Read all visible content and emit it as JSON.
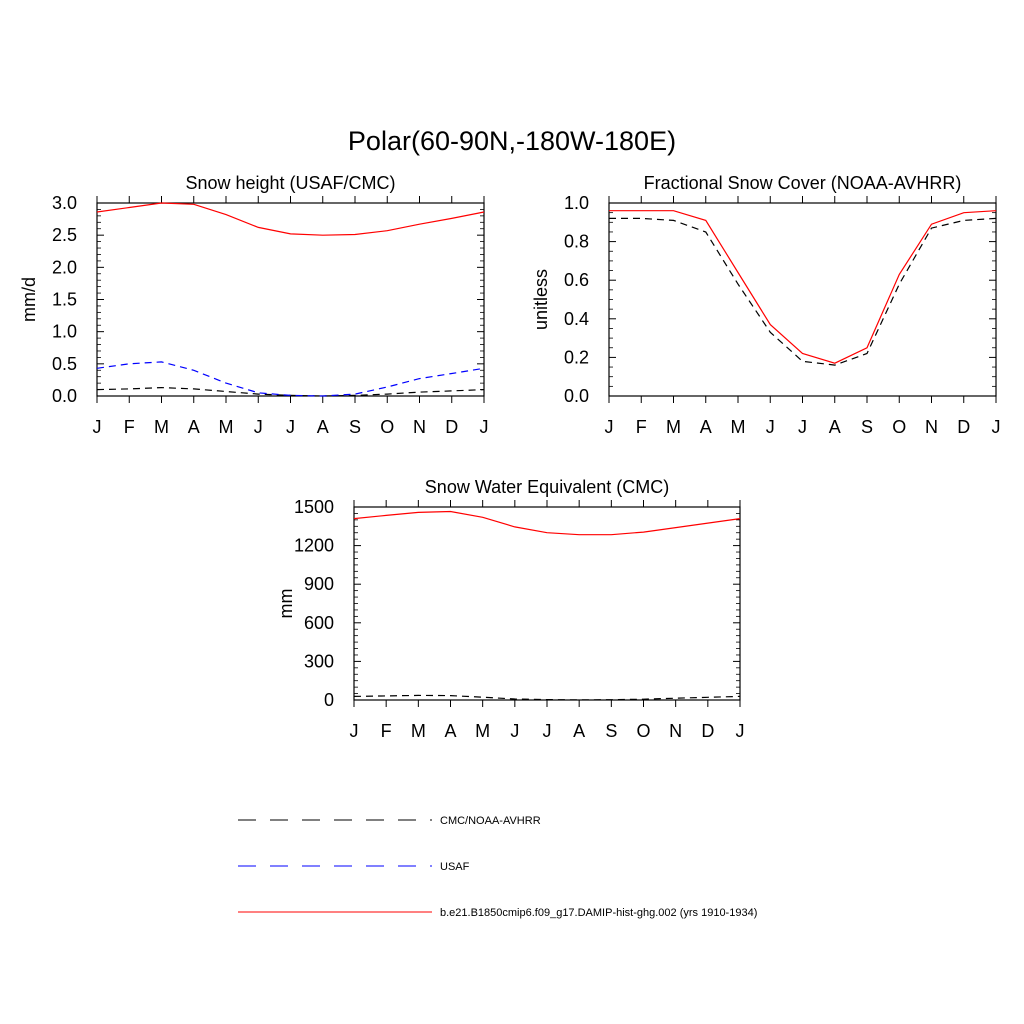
{
  "figure": {
    "title": "Polar(60-90N,-180W-180E)"
  },
  "legend": [
    {
      "label": "CMC/NOAA-AVHRR",
      "color": "#000000",
      "style": "dashed"
    },
    {
      "label": "USAF",
      "color": "#0000ff",
      "style": "dashed"
    },
    {
      "label": "b.e21.B1850cmip6.f09_g17.DAMIP-hist-ghg.002 (yrs 1910-1934)",
      "color": "#ff0000",
      "style": "solid"
    }
  ],
  "chart_data": [
    {
      "type": "line",
      "title": "Snow height (USAF/CMC)",
      "ylabel": "mm/d",
      "xlabel": "",
      "categories": [
        "J",
        "F",
        "M",
        "A",
        "M",
        "J",
        "J",
        "A",
        "S",
        "O",
        "N",
        "D",
        "J"
      ],
      "ylim": [
        0,
        3.0
      ],
      "yticks": [
        "0.0",
        "0.5",
        "1.0",
        "1.5",
        "2.0",
        "2.5",
        "3.0"
      ],
      "series": [
        {
          "name": "CMC/NOAA-AVHRR",
          "color": "#000000",
          "style": "dashed",
          "values": [
            0.1,
            0.11,
            0.13,
            0.11,
            0.07,
            0.03,
            0.01,
            0.0,
            0.01,
            0.03,
            0.06,
            0.08,
            0.1
          ]
        },
        {
          "name": "USAF",
          "color": "#0000ff",
          "style": "dashed",
          "values": [
            0.43,
            0.5,
            0.53,
            0.4,
            0.2,
            0.05,
            0.01,
            0.0,
            0.03,
            0.14,
            0.27,
            0.35,
            0.43
          ]
        },
        {
          "name": "b.e21.B1850cmip6.f09_g17.DAMIP-hist-ghg.002 (yrs 1910-1934)",
          "color": "#ff0000",
          "style": "solid",
          "values": [
            2.86,
            2.93,
            3.0,
            2.98,
            2.82,
            2.62,
            2.52,
            2.5,
            2.51,
            2.57,
            2.67,
            2.76,
            2.86
          ]
        }
      ]
    },
    {
      "type": "line",
      "title": "Fractional Snow Cover (NOAA-AVHRR)",
      "ylabel": "unitless",
      "xlabel": "",
      "categories": [
        "J",
        "F",
        "M",
        "A",
        "M",
        "J",
        "J",
        "A",
        "S",
        "O",
        "N",
        "D",
        "J"
      ],
      "ylim": [
        0,
        1.0
      ],
      "yticks": [
        "0.0",
        "0.2",
        "0.4",
        "0.6",
        "0.8",
        "1.0"
      ],
      "series": [
        {
          "name": "CMC/NOAA-AVHRR",
          "color": "#000000",
          "style": "dashed",
          "values": [
            0.92,
            0.92,
            0.91,
            0.85,
            0.58,
            0.33,
            0.18,
            0.16,
            0.22,
            0.58,
            0.87,
            0.91,
            0.92
          ]
        },
        {
          "name": "b.e21.B1850cmip6.f09_g17.DAMIP-hist-ghg.002 (yrs 1910-1934)",
          "color": "#ff0000",
          "style": "solid",
          "values": [
            0.96,
            0.96,
            0.96,
            0.91,
            0.64,
            0.37,
            0.22,
            0.17,
            0.25,
            0.63,
            0.89,
            0.95,
            0.96
          ]
        }
      ]
    },
    {
      "type": "line",
      "title": "Snow Water Equivalent (CMC)",
      "ylabel": "mm",
      "xlabel": "",
      "categories": [
        "J",
        "F",
        "M",
        "A",
        "M",
        "J",
        "J",
        "A",
        "S",
        "O",
        "N",
        "D",
        "J"
      ],
      "ylim": [
        0,
        1500
      ],
      "yticks": [
        "0",
        "300",
        "600",
        "900",
        "1200",
        "1500"
      ],
      "series": [
        {
          "name": "CMC/NOAA-AVHRR",
          "color": "#000000",
          "style": "dashed",
          "values": [
            28,
            32,
            36,
            34,
            22,
            8,
            3,
            1,
            2,
            6,
            14,
            21,
            28
          ]
        },
        {
          "name": "b.e21.B1850cmip6.f09_g17.DAMIP-hist-ghg.002 (yrs 1910-1934)",
          "color": "#ff0000",
          "style": "solid",
          "values": [
            1410,
            1435,
            1458,
            1465,
            1420,
            1345,
            1300,
            1285,
            1285,
            1305,
            1340,
            1375,
            1410
          ]
        }
      ]
    }
  ]
}
